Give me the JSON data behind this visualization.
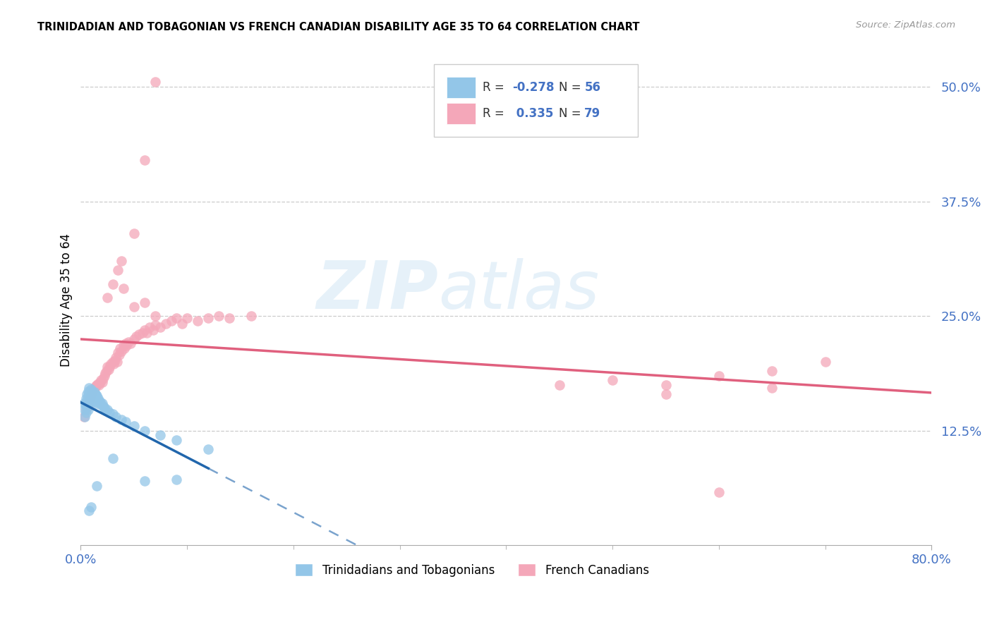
{
  "title": "TRINIDADIAN AND TOBAGONIAN VS FRENCH CANADIAN DISABILITY AGE 35 TO 64 CORRELATION CHART",
  "source": "Source: ZipAtlas.com",
  "ylabel": "Disability Age 35 to 64",
  "xlim": [
    0.0,
    0.8
  ],
  "ylim": [
    0.0,
    0.535
  ],
  "ytick_vals": [
    0.125,
    0.25,
    0.375,
    0.5
  ],
  "ytick_labels": [
    "12.5%",
    "25.0%",
    "37.5%",
    "50.0%"
  ],
  "blue_color": "#93c6e8",
  "pink_color": "#f4a7b9",
  "blue_line_color": "#2166ac",
  "pink_line_color": "#e0607e",
  "watermark_line1": "ZIP",
  "watermark_line2": "atlas",
  "blue_R": -0.278,
  "blue_N": 56,
  "pink_R": 0.335,
  "pink_N": 79,
  "blue_scatter_x": [
    0.003,
    0.004,
    0.004,
    0.005,
    0.005,
    0.005,
    0.006,
    0.006,
    0.006,
    0.007,
    0.007,
    0.007,
    0.007,
    0.008,
    0.008,
    0.008,
    0.009,
    0.009,
    0.01,
    0.01,
    0.01,
    0.011,
    0.011,
    0.012,
    0.012,
    0.013,
    0.013,
    0.014,
    0.014,
    0.015,
    0.015,
    0.016,
    0.017,
    0.018,
    0.019,
    0.02,
    0.021,
    0.022,
    0.023,
    0.025,
    0.027,
    0.03,
    0.033,
    0.038,
    0.042,
    0.05,
    0.06,
    0.075,
    0.09,
    0.12,
    0.015,
    0.01,
    0.008,
    0.06,
    0.09,
    0.03
  ],
  "blue_scatter_y": [
    0.155,
    0.148,
    0.14,
    0.16,
    0.153,
    0.145,
    0.165,
    0.158,
    0.15,
    0.168,
    0.162,
    0.155,
    0.148,
    0.172,
    0.165,
    0.158,
    0.168,
    0.162,
    0.17,
    0.163,
    0.156,
    0.168,
    0.16,
    0.165,
    0.157,
    0.167,
    0.159,
    0.164,
    0.156,
    0.163,
    0.155,
    0.16,
    0.158,
    0.156,
    0.153,
    0.155,
    0.152,
    0.15,
    0.148,
    0.148,
    0.145,
    0.143,
    0.14,
    0.137,
    0.135,
    0.13,
    0.125,
    0.12,
    0.115,
    0.105,
    0.065,
    0.042,
    0.038,
    0.07,
    0.072,
    0.095
  ],
  "pink_scatter_x": [
    0.003,
    0.005,
    0.007,
    0.008,
    0.009,
    0.01,
    0.011,
    0.012,
    0.013,
    0.014,
    0.015,
    0.016,
    0.017,
    0.018,
    0.019,
    0.02,
    0.021,
    0.022,
    0.023,
    0.024,
    0.025,
    0.026,
    0.027,
    0.028,
    0.03,
    0.031,
    0.032,
    0.033,
    0.034,
    0.035,
    0.036,
    0.037,
    0.038,
    0.04,
    0.041,
    0.042,
    0.043,
    0.045,
    0.047,
    0.05,
    0.052,
    0.055,
    0.058,
    0.06,
    0.062,
    0.065,
    0.068,
    0.07,
    0.075,
    0.08,
    0.085,
    0.09,
    0.095,
    0.1,
    0.11,
    0.12,
    0.13,
    0.14,
    0.16,
    0.025,
    0.03,
    0.035,
    0.038,
    0.04,
    0.05,
    0.06,
    0.07,
    0.5,
    0.55,
    0.6,
    0.65,
    0.7,
    0.45,
    0.55,
    0.65,
    0.05,
    0.06,
    0.07,
    0.6
  ],
  "pink_scatter_y": [
    0.14,
    0.148,
    0.152,
    0.158,
    0.162,
    0.165,
    0.168,
    0.17,
    0.172,
    0.174,
    0.175,
    0.176,
    0.175,
    0.178,
    0.18,
    0.178,
    0.182,
    0.185,
    0.188,
    0.19,
    0.195,
    0.192,
    0.195,
    0.198,
    0.2,
    0.198,
    0.202,
    0.205,
    0.2,
    0.21,
    0.208,
    0.215,
    0.212,
    0.218,
    0.215,
    0.22,
    0.218,
    0.222,
    0.22,
    0.225,
    0.228,
    0.23,
    0.232,
    0.235,
    0.232,
    0.238,
    0.235,
    0.24,
    0.238,
    0.242,
    0.245,
    0.248,
    0.242,
    0.248,
    0.245,
    0.248,
    0.25,
    0.248,
    0.25,
    0.27,
    0.285,
    0.3,
    0.31,
    0.28,
    0.26,
    0.265,
    0.25,
    0.18,
    0.175,
    0.185,
    0.19,
    0.2,
    0.175,
    0.165,
    0.172,
    0.34,
    0.42,
    0.505,
    0.058
  ]
}
